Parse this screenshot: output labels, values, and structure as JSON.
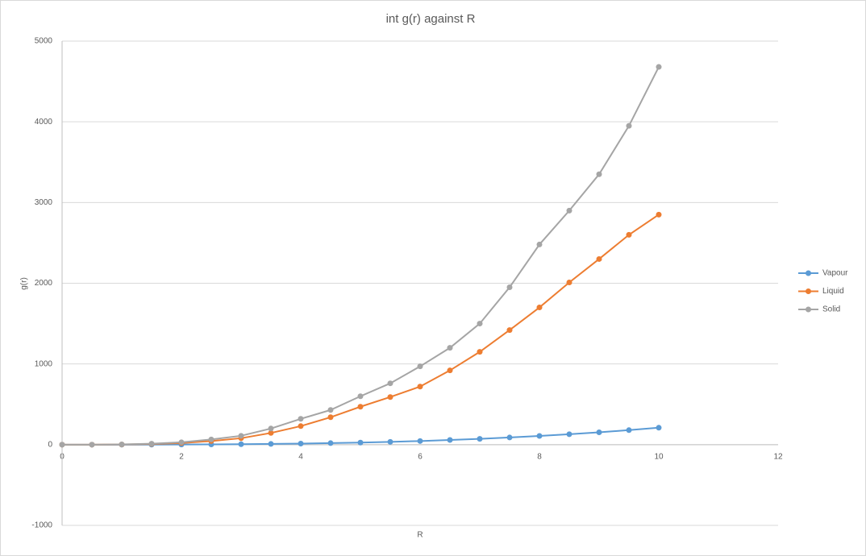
{
  "chart_data": {
    "type": "scatter-line",
    "title": "int g(r) against R",
    "x_label": "R",
    "y_label": "g(r)",
    "x": [
      0,
      0.5,
      1,
      1.5,
      2,
      2.5,
      3,
      3.5,
      4,
      4.5,
      5,
      5.5,
      6,
      6.5,
      7,
      7.5,
      8,
      8.5,
      9,
      9.5,
      10
    ],
    "series": [
      {
        "name": "Vapour",
        "color": "#5b9bd5",
        "values": [
          0,
          0,
          0,
          1,
          2,
          3,
          6,
          9,
          13,
          19,
          26,
          35,
          45,
          58,
          72,
          89,
          108,
          129,
          153,
          180,
          210
        ]
      },
      {
        "name": "Liquid",
        "color": "#ed7d31",
        "values": [
          0,
          0,
          2,
          8,
          20,
          45,
          80,
          145,
          230,
          340,
          470,
          590,
          720,
          920,
          1150,
          1420,
          1700,
          2010,
          2300,
          2600,
          2850
        ]
      },
      {
        "name": "Solid",
        "color": "#a5a5a5",
        "values": [
          0,
          0,
          3,
          12,
          30,
          65,
          110,
          200,
          320,
          430,
          600,
          760,
          970,
          1200,
          1500,
          1950,
          2480,
          2900,
          3350,
          3950,
          4680
        ]
      }
    ],
    "xlim": [
      0,
      12
    ],
    "xticks": [
      0,
      2,
      4,
      6,
      8,
      10,
      12
    ],
    "ylim": [
      -1000,
      5000
    ],
    "yticks": [
      -1000,
      0,
      1000,
      2000,
      3000,
      4000,
      5000
    ],
    "grid": true,
    "legend": "right"
  }
}
